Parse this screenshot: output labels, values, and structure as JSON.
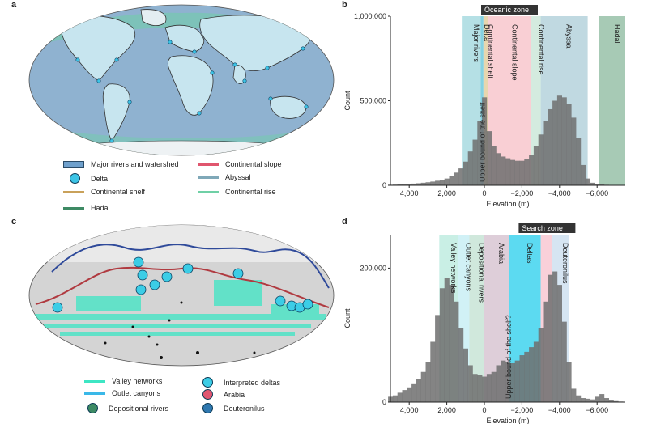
{
  "panels": {
    "a": "a",
    "b": "b",
    "c": "c",
    "d": "d"
  },
  "legend_a": [
    {
      "label": "Major rivers and watershed",
      "color": "#6fa0cc",
      "kind": "bar"
    },
    {
      "label": "Delta",
      "color": "#3cc4e6",
      "kind": "dot"
    },
    {
      "label": "Continental shelf",
      "color": "#c9a15a",
      "kind": "line"
    },
    {
      "label": "Hadal",
      "color": "#3e8a64",
      "kind": "line"
    },
    {
      "label": "Continental slope",
      "color": "#e0566e",
      "kind": "line"
    },
    {
      "label": "Abyssal",
      "color": "#7fa8b8",
      "kind": "line"
    },
    {
      "label": "Continental rise",
      "color": "#6fd0a6",
      "kind": "line"
    }
  ],
  "legend_c": [
    {
      "label": "Valley networks",
      "color": "#3de6c4",
      "kind": "line"
    },
    {
      "label": "Outlet canyons",
      "color": "#3ab8e8",
      "kind": "line"
    },
    {
      "label": "Depositional rivers",
      "color": "#3c8a64",
      "kind": "dot"
    },
    {
      "label": "Interpreted deltas",
      "color": "#3ccde6",
      "kind": "dot"
    },
    {
      "label": "Arabia",
      "color": "#e05670",
      "kind": "dot"
    },
    {
      "label": "Deuteronilus",
      "color": "#2f78b0",
      "kind": "dot"
    }
  ],
  "chart_data": [
    {
      "type": "bar",
      "panel": "b",
      "xlabel": "Elevation (m)",
      "ylabel": "Count",
      "xlim": [
        5000,
        -7500
      ],
      "ylim": [
        0,
        1000000
      ],
      "x_ticks": [
        4000,
        2000,
        0,
        -2000,
        -4000,
        -6000
      ],
      "x_tick_labels": [
        "4,000",
        "2,000",
        "0",
        "−2,000",
        "−4,000",
        "−6,000"
      ],
      "y_ticks": [
        0,
        500000,
        1000000
      ],
      "y_tick_labels": [
        "0",
        "500,000",
        "1,000,000"
      ],
      "zone_tag": "Oceanic zone",
      "zone_range": [
        0,
        -7500
      ],
      "bands": [
        {
          "label": "Major rivers",
          "from": 1200,
          "to": 200,
          "color": "#a8dbe0"
        },
        {
          "label": "Delta",
          "from": 200,
          "to": 50,
          "color": "#6fc9dc"
        },
        {
          "label": "Continental shelf",
          "from": 50,
          "to": -200,
          "color": "#e3cfa0"
        },
        {
          "label": "Continental slope",
          "from": -200,
          "to": -2500,
          "color": "#f8c7cc"
        },
        {
          "label": "Continental rise",
          "from": -2500,
          "to": -3000,
          "color": "#cde7d9"
        },
        {
          "label": "Abyssal",
          "from": -3000,
          "to": -5500,
          "color": "#b5d2dc"
        },
        {
          "label": "Hadal",
          "from": -6100,
          "to": -7500,
          "color": "#98c1a8"
        }
      ],
      "reference_label": "Upper bound of the shelf",
      "reference_x": 100,
      "bin_centers": [
        5000,
        4750,
        4500,
        4250,
        4000,
        3750,
        3500,
        3250,
        3000,
        2750,
        2500,
        2250,
        2000,
        1750,
        1500,
        1250,
        1000,
        750,
        500,
        250,
        0,
        -250,
        -500,
        -750,
        -1000,
        -1250,
        -1500,
        -1750,
        -2000,
        -2250,
        -2500,
        -2750,
        -3000,
        -3250,
        -3500,
        -3750,
        -4000,
        -4250,
        -4500,
        -4750,
        -5000,
        -5250,
        -5500,
        -5750,
        -6000,
        -6250,
        -6500,
        -6750,
        -7000,
        -7250
      ],
      "values": [
        3000,
        4000,
        5000,
        6000,
        8000,
        10000,
        12000,
        15000,
        18000,
        22000,
        27000,
        33000,
        40000,
        55000,
        75000,
        100000,
        140000,
        200000,
        270000,
        380000,
        520000,
        320000,
        230000,
        190000,
        170000,
        160000,
        150000,
        145000,
        145000,
        155000,
        180000,
        230000,
        300000,
        380000,
        450000,
        500000,
        530000,
        520000,
        480000,
        400000,
        280000,
        120000,
        40000,
        15000,
        8000,
        5000,
        3000,
        2000,
        1000,
        500
      ]
    },
    {
      "type": "bar",
      "panel": "d",
      "xlabel": "Elevation (m)",
      "ylabel": "Count",
      "xlim": [
        5000,
        -7500
      ],
      "ylim": [
        0,
        250000
      ],
      "x_ticks": [
        4000,
        2000,
        0,
        -2000,
        -4000,
        -6000
      ],
      "x_tick_labels": [
        "4,000",
        "2,000",
        "0",
        "−2,000",
        "−4,000",
        "−6,000"
      ],
      "y_ticks": [
        0,
        200000
      ],
      "y_tick_labels": [
        "0",
        "200,000"
      ],
      "zone_tag": "Search zone",
      "zone_range": [
        -2000,
        -4500
      ],
      "bands": [
        {
          "label": "Valley networks",
          "from": 2400,
          "to": 1400,
          "color": "#bfece0"
        },
        {
          "label": "Outlet canyons",
          "from": 1400,
          "to": 800,
          "color": "#c9eef4"
        },
        {
          "label": "Depositional rivers",
          "from": 800,
          "to": 0,
          "color": "#c8e4d6"
        },
        {
          "label": "Arabia",
          "from": 0,
          "to": -1300,
          "color": "#d8c6d2"
        },
        {
          "label": "Deltas",
          "from": -1300,
          "to": -3000,
          "color": "#3fd3ef"
        },
        {
          "label": "",
          "from": -3000,
          "to": -3600,
          "color": "#f8c8d2"
        },
        {
          "label": "Deuteronilus",
          "from": -3600,
          "to": -4500,
          "color": "#cfe0f0"
        }
      ],
      "reference_label": "Upper bound of the shelf?",
      "reference_x": -1300,
      "bin_centers": [
        5000,
        4750,
        4500,
        4250,
        4000,
        3750,
        3500,
        3250,
        3000,
        2750,
        2500,
        2250,
        2000,
        1750,
        1500,
        1250,
        1000,
        750,
        500,
        250,
        0,
        -250,
        -500,
        -750,
        -1000,
        -1250,
        -1500,
        -1750,
        -2000,
        -2250,
        -2500,
        -2750,
        -3000,
        -3250,
        -3500,
        -3750,
        -4000,
        -4250,
        -4500,
        -4750,
        -5000,
        -5250,
        -5500,
        -5750,
        -6000,
        -6250,
        -6500,
        -6750,
        -7000,
        -7250
      ],
      "values": [
        8000,
        10000,
        14000,
        18000,
        22000,
        28000,
        35000,
        45000,
        60000,
        90000,
        130000,
        170000,
        185000,
        175000,
        150000,
        110000,
        80000,
        55000,
        42000,
        40000,
        38000,
        42000,
        45000,
        55000,
        62000,
        60000,
        58000,
        62000,
        70000,
        75000,
        82000,
        90000,
        110000,
        150000,
        190000,
        195000,
        175000,
        120000,
        60000,
        20000,
        10000,
        6000,
        5000,
        4000,
        8000,
        12000,
        6000,
        3000,
        1500,
        800
      ]
    }
  ]
}
